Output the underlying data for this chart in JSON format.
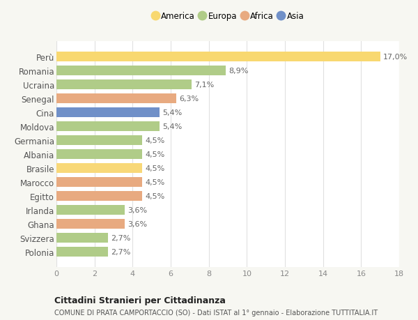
{
  "countries": [
    "Polonia",
    "Svizzera",
    "Ghana",
    "Irlanda",
    "Egitto",
    "Marocco",
    "Brasile",
    "Albania",
    "Germania",
    "Moldova",
    "Cina",
    "Senegal",
    "Ucraina",
    "Romania",
    "Perù"
  ],
  "values": [
    2.7,
    2.7,
    3.6,
    3.6,
    4.5,
    4.5,
    4.5,
    4.5,
    4.5,
    5.4,
    5.4,
    6.3,
    7.1,
    8.9,
    17.0
  ],
  "colors": [
    "#b0cc88",
    "#b0cc88",
    "#e8aa80",
    "#b0cc88",
    "#e8aa80",
    "#e8aa80",
    "#f8d878",
    "#b0cc88",
    "#b0cc88",
    "#b0cc88",
    "#7090c8",
    "#e8aa80",
    "#b0cc88",
    "#b0cc88",
    "#f8d870"
  ],
  "labels": [
    "2,7%",
    "2,7%",
    "3,6%",
    "3,6%",
    "4,5%",
    "4,5%",
    "4,5%",
    "4,5%",
    "4,5%",
    "5,4%",
    "5,4%",
    "6,3%",
    "7,1%",
    "8,9%",
    "17,0%"
  ],
  "legend_names": [
    "America",
    "Europa",
    "Africa",
    "Asia"
  ],
  "legend_colors": [
    "#f8d870",
    "#b0cc88",
    "#e8aa80",
    "#7090c8"
  ],
  "xlim": [
    0,
    18
  ],
  "xticks": [
    0,
    2,
    4,
    6,
    8,
    10,
    12,
    14,
    16,
    18
  ],
  "title": "Cittadini Stranieri per Cittadinanza",
  "subtitle": "COMUNE DI PRATA CAMPORTACCIO (SO) - Dati ISTAT al 1° gennaio - Elaborazione TUTTITALIA.IT",
  "bg_color": "#f7f7f2",
  "plot_bg_color": "#ffffff",
  "bar_height": 0.72,
  "label_fontsize": 8.0,
  "tick_fontsize": 8.0,
  "ytick_fontsize": 8.5
}
